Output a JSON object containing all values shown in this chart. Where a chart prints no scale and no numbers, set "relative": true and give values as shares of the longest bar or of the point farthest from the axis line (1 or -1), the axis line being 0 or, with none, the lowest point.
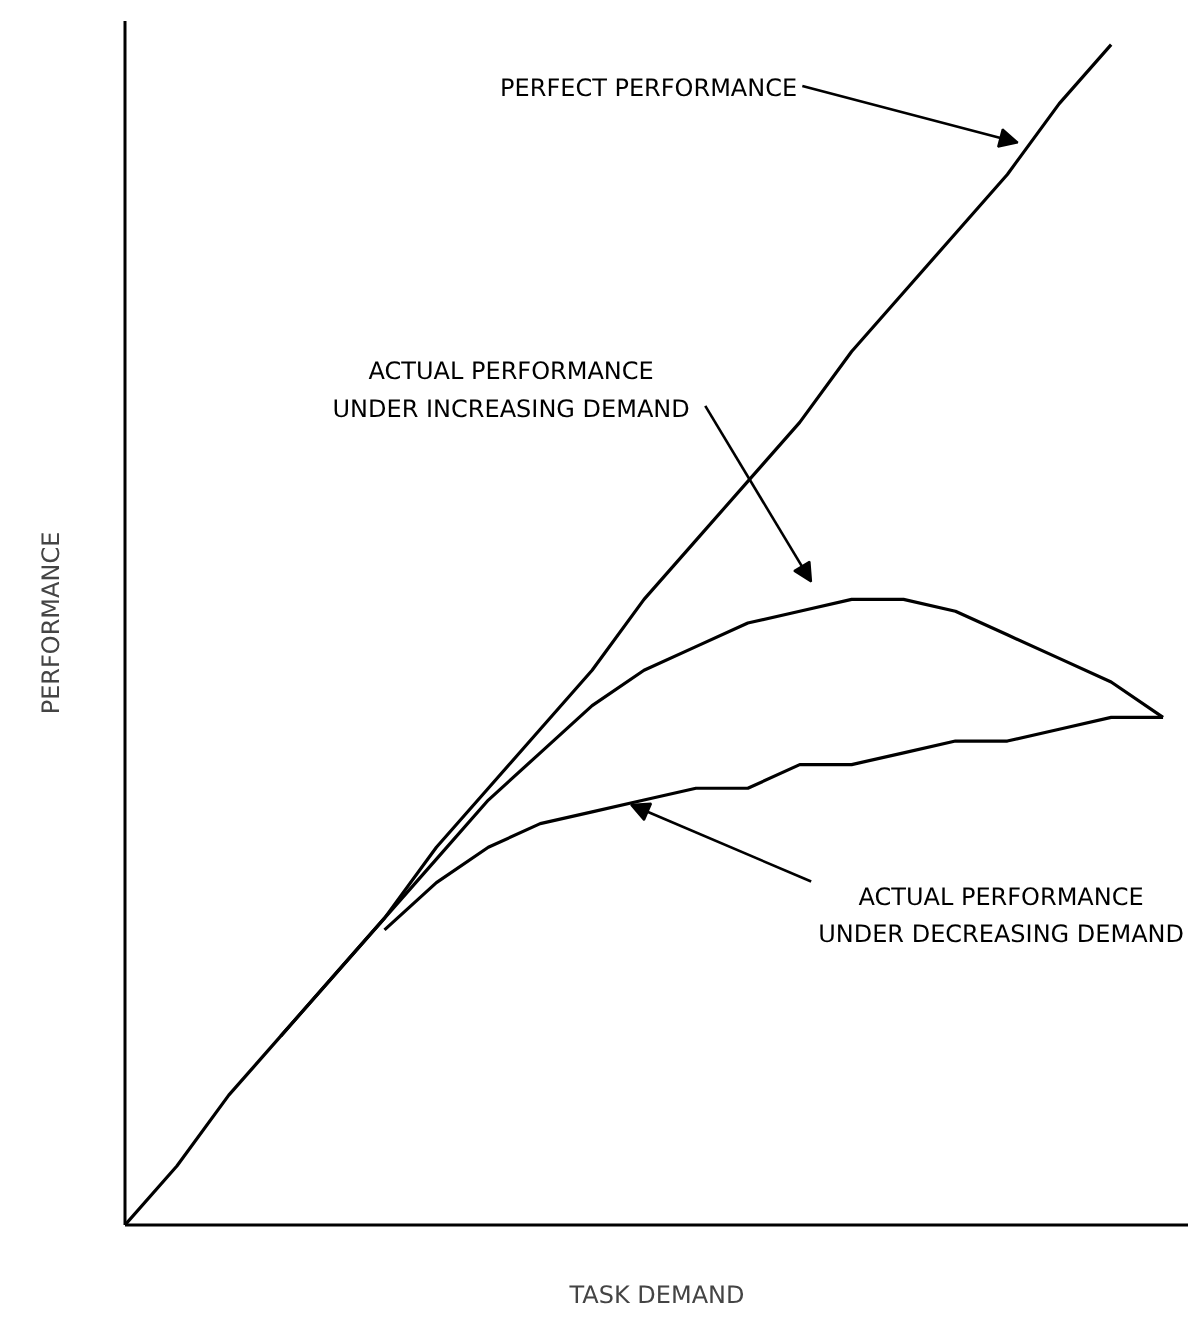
{
  "chart_data": {
    "type": "line",
    "relative": true,
    "xlabel": "TASK DEMAND",
    "ylabel": "PERFORMANCE",
    "annotations": [
      "PERFECT PERFORMANCE",
      "ACTUAL PERFORMANCE\nUNDER INCREASING DEMAND",
      "ACTUAL PERFORMANCE\nUNDER DECREASING DEMAND"
    ],
    "categories": [
      null,
      null,
      null,
      null,
      null,
      null,
      null,
      null,
      null,
      null,
      null,
      null,
      null,
      null,
      null,
      null,
      null,
      null,
      null,
      null,
      null
    ],
    "series": [
      {
        "color": "#000000",
        "values": [
          0,
          0.05,
          0.11,
          0.16,
          0.21,
          0.26,
          0.32,
          0.37,
          0.42,
          0.47,
          0.53,
          0.58,
          0.63,
          0.68,
          0.74,
          0.79,
          0.84,
          0.89,
          0.95,
          1,
          null
        ]
      },
      {
        "color": "#000000",
        "values": [
          null,
          null,
          null,
          0.16,
          0.21,
          0.26,
          0.31,
          0.36,
          0.4,
          0.44,
          0.47,
          0.49,
          0.51,
          0.52,
          0.53,
          0.53,
          0.52,
          0.5,
          0.48,
          0.46,
          0.43
        ]
      },
      {
        "color": "#000000",
        "values": [
          null,
          null,
          null,
          null,
          null,
          0.25,
          0.29,
          0.32,
          0.34,
          0.35,
          0.36,
          0.37,
          0.37,
          0.39,
          0.39,
          0.4,
          0.41,
          0.41,
          0.42,
          0.43,
          0.43
        ]
      }
    ]
  }
}
